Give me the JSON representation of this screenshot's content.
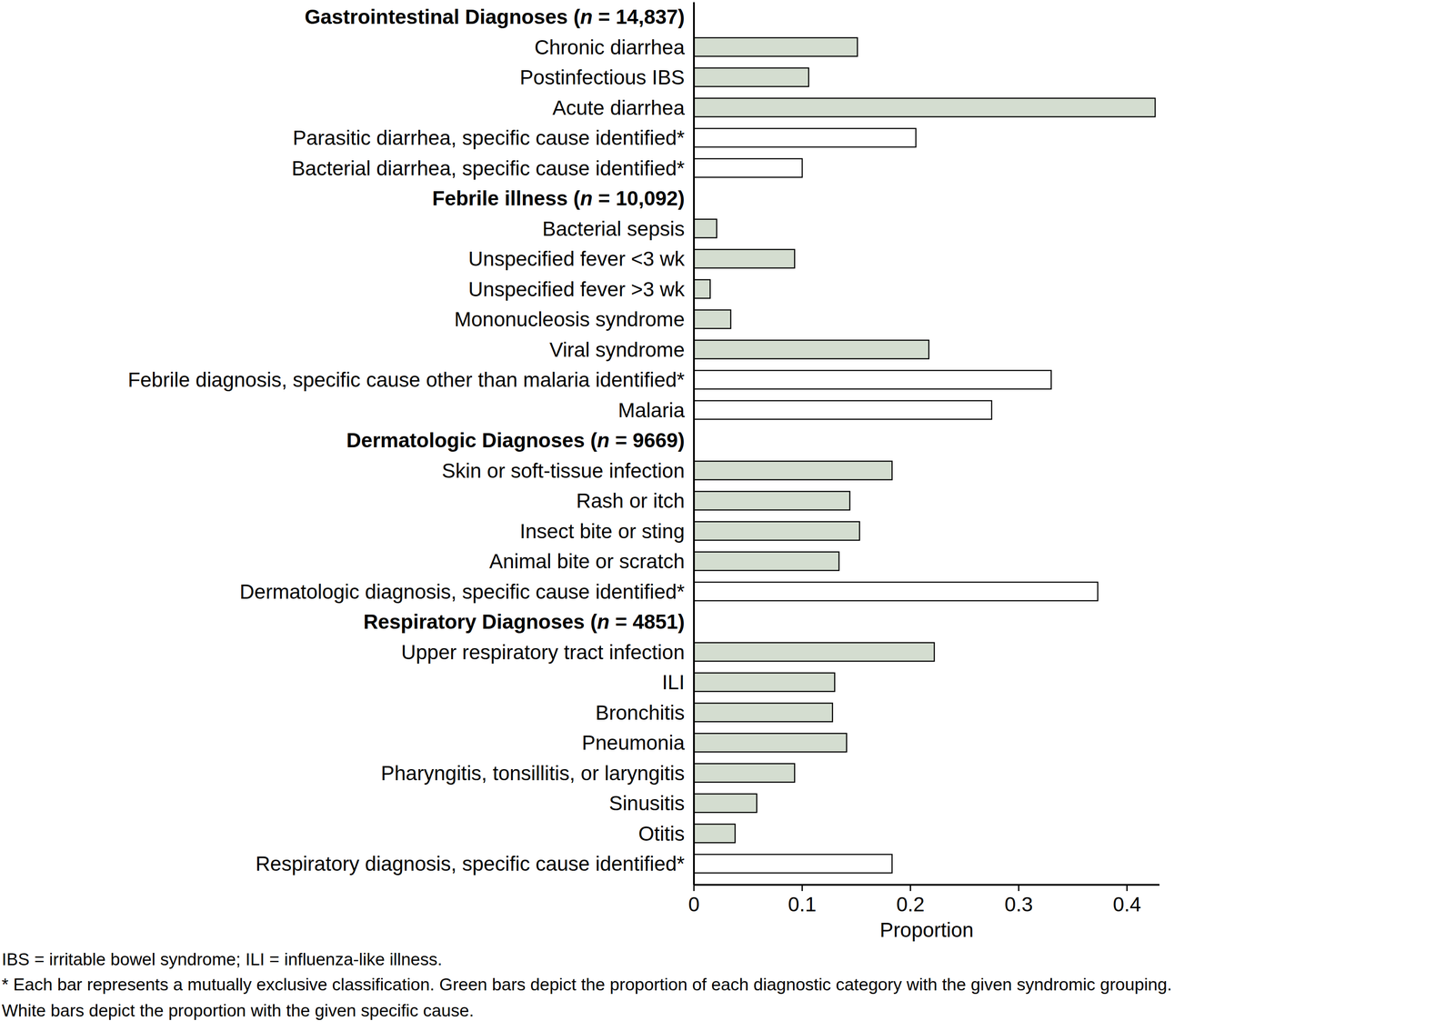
{
  "chart_data": {
    "type": "bar",
    "orientation": "horizontal",
    "xlabel": "Proportion",
    "xlim": [
      0,
      0.43
    ],
    "xticks": [
      0,
      0.1,
      0.2,
      0.3,
      0.4
    ],
    "groups": [
      {
        "name": "Gastrointestinal Diagnoses (n = 14,837)",
        "categories": [
          "Chronic diarrhea",
          "Postinfectious IBS",
          "Acute diarrhea",
          "Parasitic diarrhea, specific cause identified*",
          "Bacterial diarrhea, specific cause identified*"
        ],
        "values": [
          0.151,
          0.106,
          0.426,
          0.205,
          0.1
        ],
        "colors": [
          "#d4ddd0",
          "#d4ddd0",
          "#d4ddd0",
          "#ffffff",
          "#ffffff"
        ]
      },
      {
        "name": "Febrile illness (n = 10,092)",
        "categories": [
          "Bacterial sepsis",
          "Unspecified fever <3 wk",
          "Unspecified fever >3 wk",
          "Mononucleosis syndrome",
          "Viral syndrome",
          "Febrile diagnosis, specific cause other than malaria identified*",
          "Malaria"
        ],
        "values": [
          0.021,
          0.093,
          0.015,
          0.034,
          0.217,
          0.33,
          0.275
        ],
        "colors": [
          "#d4ddd0",
          "#d4ddd0",
          "#d4ddd0",
          "#d4ddd0",
          "#d4ddd0",
          "#ffffff",
          "#ffffff"
        ]
      },
      {
        "name": "Dermatologic Diagnoses (n = 9669)",
        "categories": [
          "Skin or soft-tissue infection",
          "Rash or itch",
          "Insect bite or sting",
          "Animal bite or scratch",
          "Dermatologic diagnosis, specific cause identified*"
        ],
        "values": [
          0.183,
          0.144,
          0.153,
          0.134,
          0.373
        ],
        "colors": [
          "#d4ddd0",
          "#d4ddd0",
          "#d4ddd0",
          "#d4ddd0",
          "#ffffff"
        ]
      },
      {
        "name": "Respiratory Diagnoses (n = 4851)",
        "categories": [
          "Upper respiratory tract infection",
          "ILI",
          "Bronchitis",
          "Pneumonia",
          "Pharyngitis, tonsillitis, or laryngitis",
          "Sinusitis",
          "Otitis",
          "Respiratory diagnosis, specific cause identified*"
        ],
        "values": [
          0.222,
          0.13,
          0.128,
          0.141,
          0.093,
          0.058,
          0.038,
          0.183
        ],
        "colors": [
          "#d4ddd0",
          "#d4ddd0",
          "#d4ddd0",
          "#d4ddd0",
          "#d4ddd0",
          "#d4ddd0",
          "#d4ddd0",
          "#ffffff"
        ]
      }
    ],
    "footnotes": [
      "IBS = irritable bowel syndrome;  ILI = influenza-like illness.",
      "* Each bar represents a mutually exclusive classification. Green bars depict the proportion of each diagnostic category with the given syndromic grouping.",
      "White bars depict the proportion with the given specific cause."
    ]
  }
}
